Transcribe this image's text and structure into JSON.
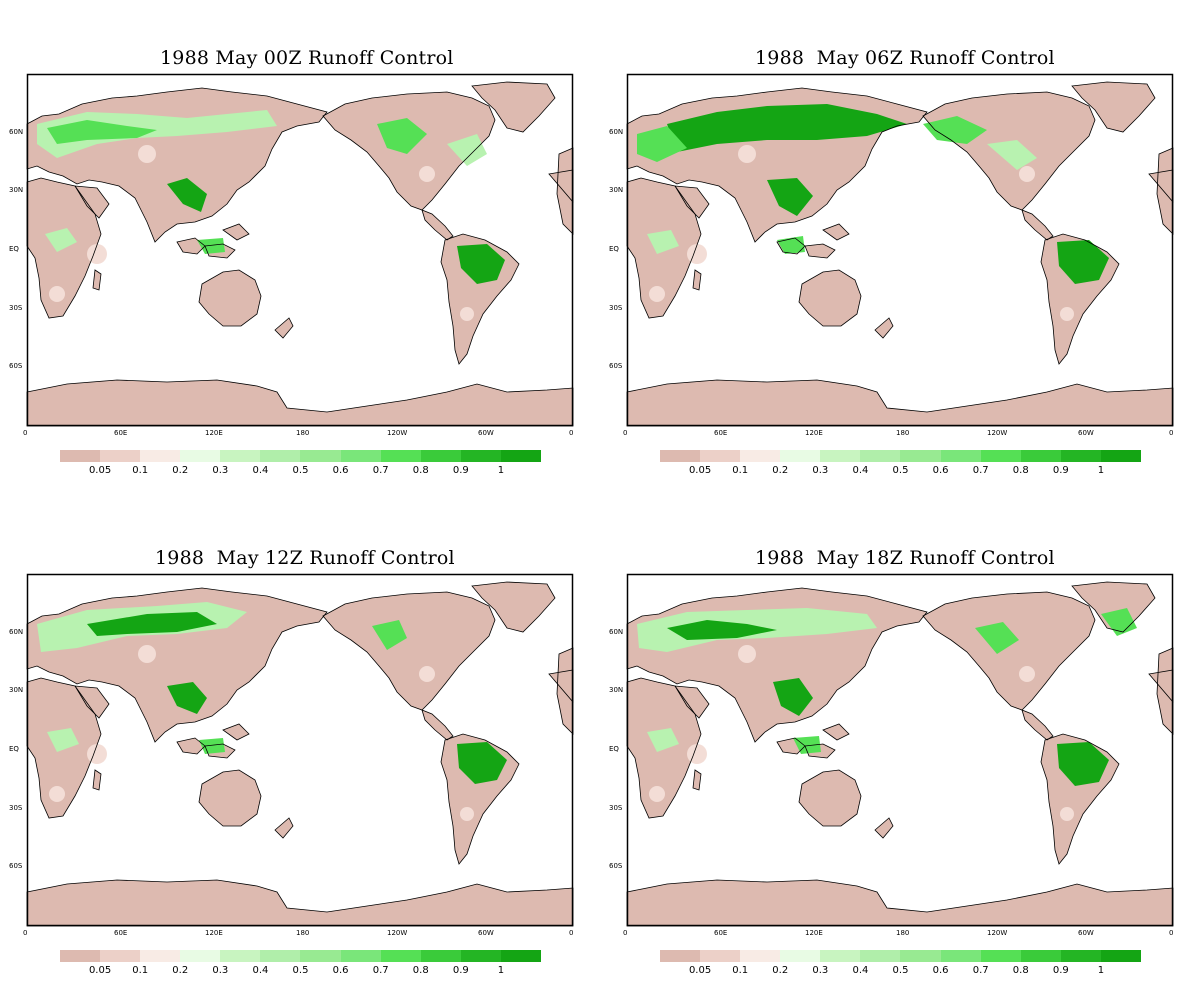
{
  "palette": {
    "ocean": "#ffffff",
    "coast": "#000000",
    "land_dry": "#ddbab0",
    "land_light": "#f3ddd6",
    "runoff_mid": "#b8f2b0",
    "runoff_high": "#55e055",
    "runoff_max": "#14a514"
  },
  "legend": {
    "colors": [
      "#ddbab0",
      "#ecd0c8",
      "#f8ebe5",
      "#e8fbe4",
      "#c8f4c0",
      "#b0eeaa",
      "#98ea92",
      "#7ae67a",
      "#55e055",
      "#3acb3a",
      "#24b524",
      "#14a514"
    ],
    "labels": [
      "0.05",
      "0.1",
      "0.2",
      "0.3",
      "0.4",
      "0.5",
      "0.6",
      "0.7",
      "0.8",
      "0.9",
      "1"
    ]
  },
  "axes": {
    "lon_ticks": [
      "0",
      "60E",
      "120E",
      "180",
      "120W",
      "60W",
      "0"
    ],
    "lat_ticks": [
      "60N",
      "30N",
      "EQ",
      "30S",
      "60S"
    ]
  },
  "panels": [
    {
      "title": "1988 May 00Z Runoff Control"
    },
    {
      "title": "1988  May 06Z Runoff Control"
    },
    {
      "title": "1988  May 12Z Runoff Control"
    },
    {
      "title": "1988  May 18Z Runoff Control"
    }
  ]
}
